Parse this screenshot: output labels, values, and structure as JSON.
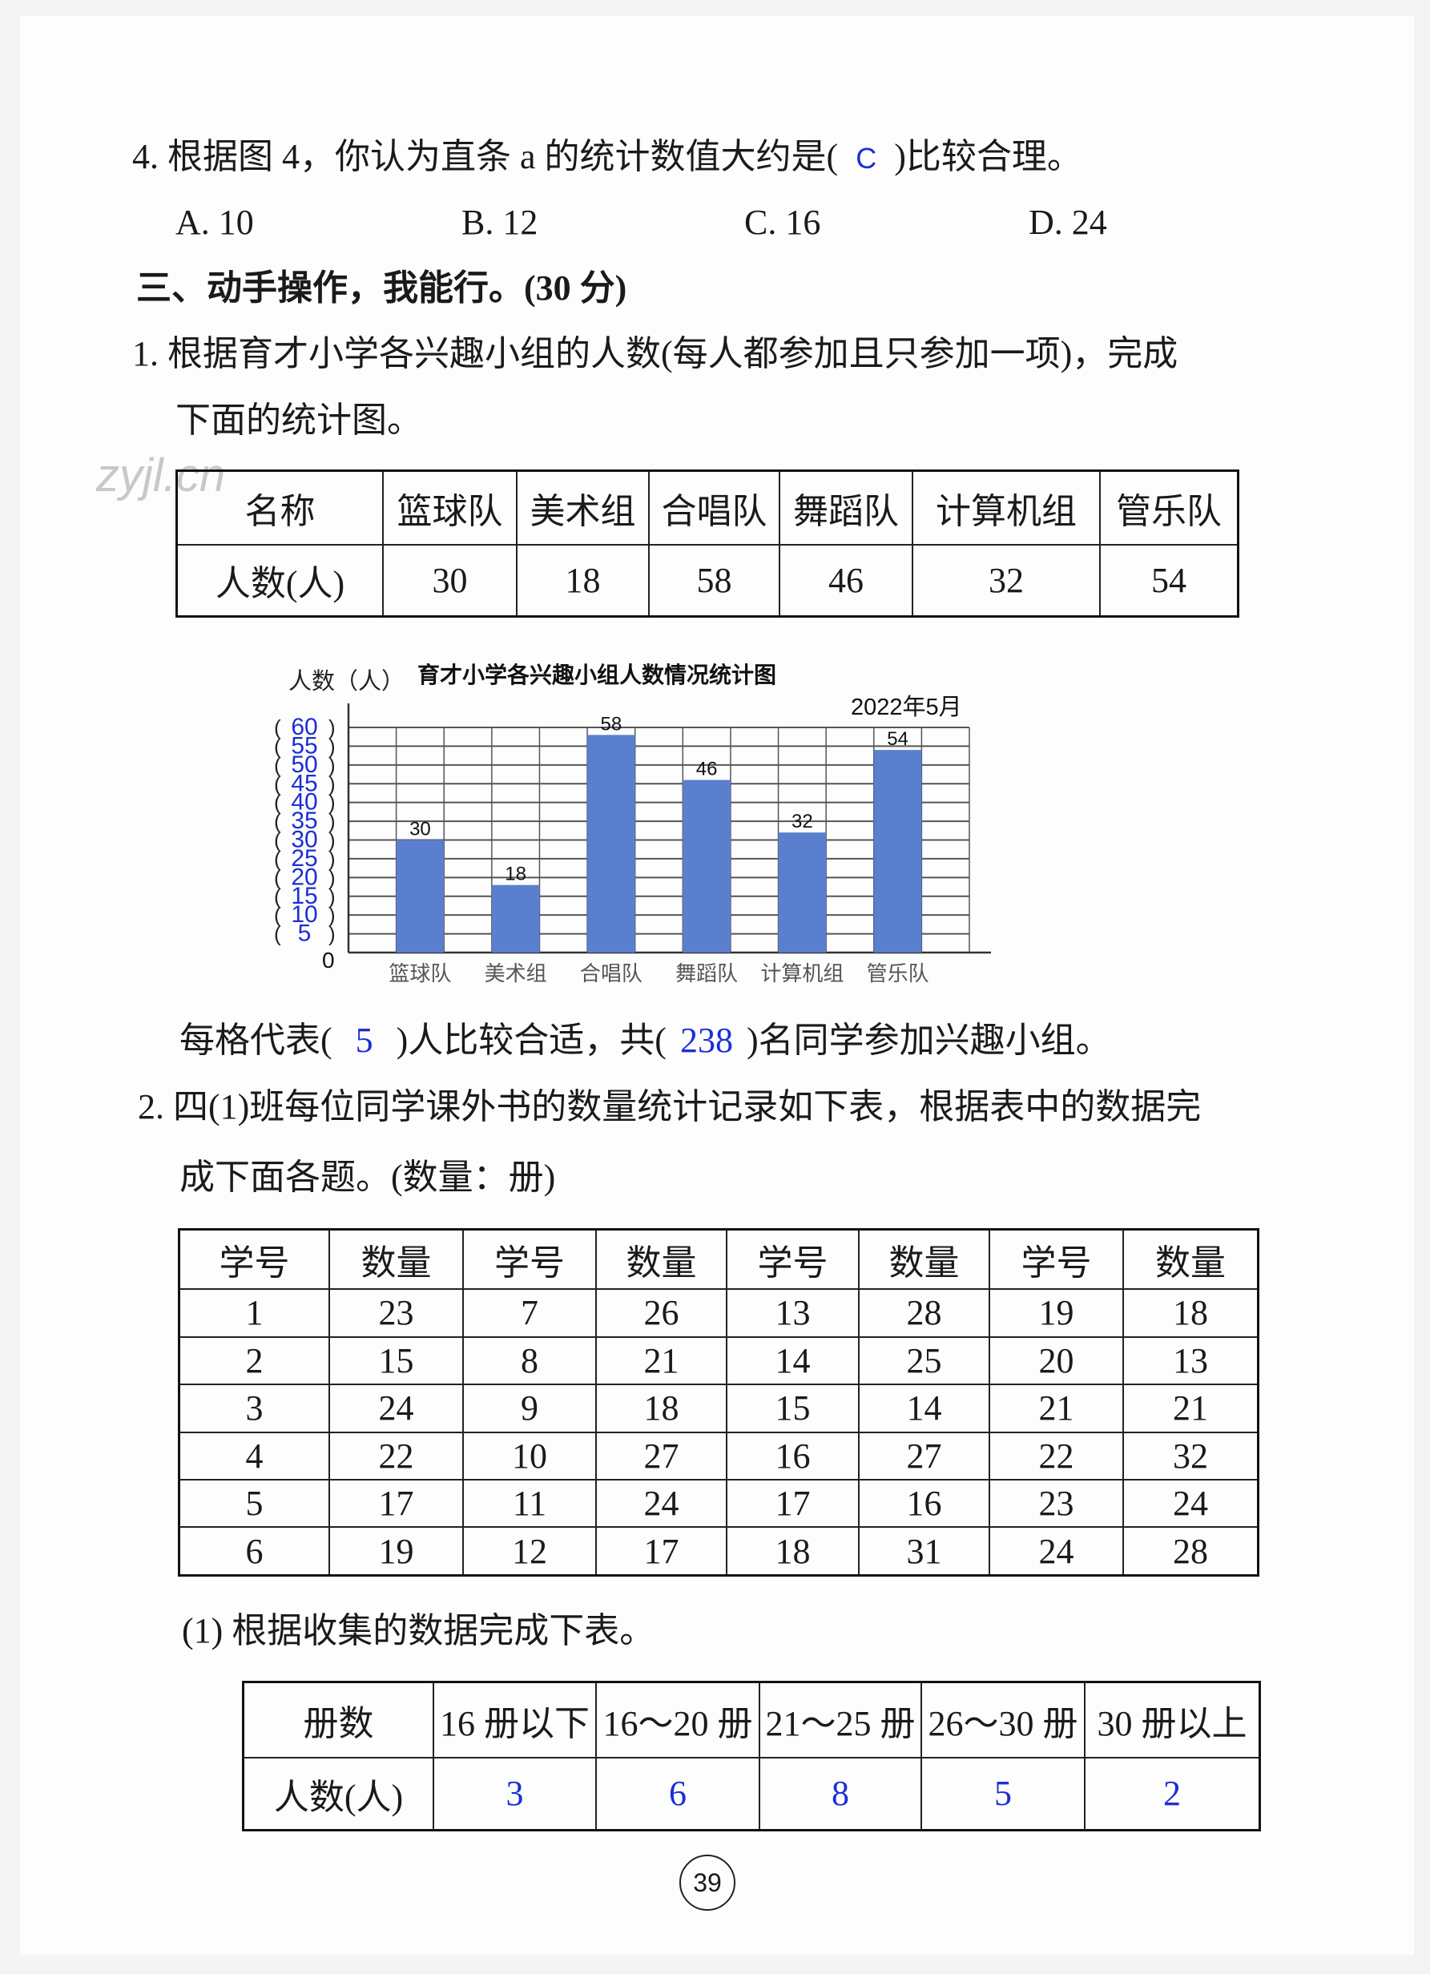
{
  "q4": {
    "text_before": "4. 根据图 4，你认为直条 a 的统计数值大约是(",
    "answer": "C",
    "text_after": ")比较合理。",
    "options": [
      "A. 10",
      "B. 12",
      "C. 16",
      "D. 24"
    ]
  },
  "section3": "三、动手操作，我能行。(30 分)",
  "q1": {
    "line1": "1. 根据育才小学各兴趣小组的人数(每人都参加且只参加一项)，完成",
    "line2": "下面的统计图。",
    "table": {
      "header_label": "名称",
      "row_label": "人数(人)",
      "names": [
        "篮球队",
        "美术组",
        "合唱队",
        "舞蹈队",
        "计算机组",
        "管乐队"
      ],
      "counts": [
        "30",
        "18",
        "58",
        "46",
        "32",
        "54"
      ]
    },
    "fill": {
      "p1": "每格代表(",
      "a1": "5",
      "p2": ")人比较合适，共(",
      "a2": "238",
      "p3": ")名同学参加兴趣小组。"
    }
  },
  "watermark": "zyjl.cn",
  "chart_data": {
    "type": "bar",
    "title": "育才小学各兴趣小组人数情况统计图",
    "ylabel": "人数（人）",
    "date": "2022年5月",
    "categories": [
      "篮球队",
      "美术组",
      "合唱队",
      "舞蹈队",
      "计算机组",
      "管乐队"
    ],
    "values": [
      30,
      18,
      58,
      46,
      32,
      54
    ],
    "data_labels": [
      "30",
      "18",
      "58",
      "46",
      "32",
      "54"
    ],
    "yticks": [
      "5",
      "10",
      "15",
      "20",
      "25",
      "30",
      "35",
      "40",
      "45",
      "50",
      "55",
      "60"
    ],
    "y0_label": "0",
    "ylim": [
      0,
      60
    ],
    "grid": true,
    "bar_color": "#5b7fcf",
    "tick_color": "#1a2fd6"
  },
  "q2": {
    "line1": "2. 四(1)班每位同学课外书的数量统计记录如下表，根据表中的数据完",
    "line2": "成下面各题。(数量：册)",
    "headers": [
      "学号",
      "数量",
      "学号",
      "数量",
      "学号",
      "数量",
      "学号",
      "数量"
    ],
    "rows": [
      [
        "1",
        "23",
        "7",
        "26",
        "13",
        "28",
        "19",
        "18"
      ],
      [
        "2",
        "15",
        "8",
        "21",
        "14",
        "25",
        "20",
        "13"
      ],
      [
        "3",
        "24",
        "9",
        "18",
        "15",
        "14",
        "21",
        "21"
      ],
      [
        "4",
        "22",
        "10",
        "27",
        "16",
        "27",
        "22",
        "32"
      ],
      [
        "5",
        "17",
        "11",
        "24",
        "17",
        "16",
        "23",
        "24"
      ],
      [
        "6",
        "19",
        "12",
        "17",
        "18",
        "31",
        "24",
        "28"
      ]
    ],
    "sub1": "(1) 根据收集的数据完成下表。",
    "summary": {
      "header_label": "册数",
      "row_label": "人数(人)",
      "ranges": [
        "16 册以下",
        "16～20 册",
        "21～25 册",
        "26～30 册",
        "30 册以上"
      ],
      "answers": [
        "3",
        "6",
        "8",
        "5",
        "2"
      ]
    }
  },
  "page_number": "39"
}
